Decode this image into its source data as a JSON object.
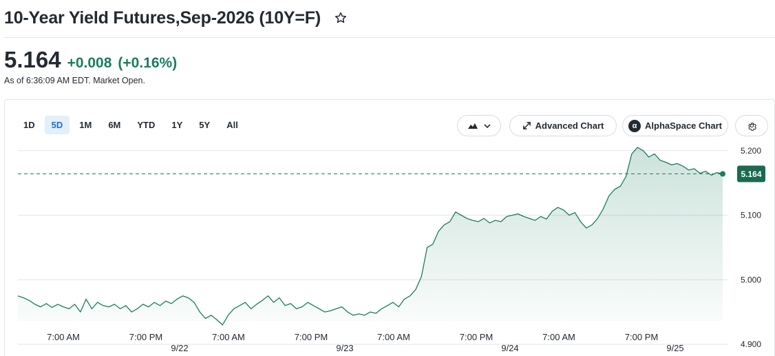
{
  "header": {
    "title": "10-Year Yield Futures,Sep-2026 (10Y=F)",
    "star_icon": "star-outline-icon"
  },
  "quote": {
    "price": "5.164",
    "change": "+0.008",
    "change_pct": "(+0.16%)",
    "as_of": "As of 6:36:09 AM EDT. Market Open.",
    "up_color": "#1a7d5f"
  },
  "ranges": [
    {
      "label": "1D",
      "active": false
    },
    {
      "label": "5D",
      "active": true
    },
    {
      "label": "1M",
      "active": false
    },
    {
      "label": "6M",
      "active": false
    },
    {
      "label": "YTD",
      "active": false
    },
    {
      "label": "1Y",
      "active": false
    },
    {
      "label": "5Y",
      "active": false
    },
    {
      "label": "All",
      "active": false
    }
  ],
  "toolbar": {
    "chart_type_icon": "mountain-chart-icon",
    "advanced_label": "Advanced Chart",
    "advanced_icon": "expand-arrows-icon",
    "alpha_label": "AlphaSpace Chart",
    "alpha_icon": "alpha-logo-icon",
    "alpha_glyph": "α",
    "settings_icon": "gear-icon"
  },
  "chart_data": {
    "type": "area",
    "title": "",
    "xlabel": "",
    "ylabel": "",
    "ylim": [
      4.9,
      5.22
    ],
    "y_ticks": [
      5.2,
      5.1,
      5.0,
      4.9
    ],
    "y_tick_labels": [
      "5.200",
      "5.100",
      "5.000",
      "4.900"
    ],
    "grid": true,
    "last_value": 5.164,
    "last_value_label": "5.164",
    "x_time_labels": [
      "7:00 AM",
      "7:00 PM",
      "7:00 AM",
      "7:00 PM",
      "7:00 AM",
      "7:00 PM",
      "7:00 AM",
      "7:00 PM"
    ],
    "x_date_labels": [
      "9/22",
      "9/23",
      "9/24",
      "9/25"
    ],
    "series": [
      {
        "values": [
          4.975,
          4.972,
          4.968,
          4.962,
          4.958,
          4.963,
          4.957,
          4.962,
          4.958,
          4.955,
          4.962,
          4.95,
          4.97,
          4.955,
          4.965,
          4.96,
          4.958,
          4.962,
          4.955,
          4.96,
          4.95,
          4.955,
          4.962,
          4.958,
          4.965,
          4.96,
          4.967,
          4.963,
          4.97,
          4.975,
          4.972,
          4.965,
          4.95,
          4.94,
          4.945,
          4.938,
          4.93,
          4.945,
          4.955,
          4.96,
          4.965,
          4.955,
          4.962,
          4.968,
          4.975,
          4.965,
          4.972,
          4.96,
          4.963,
          4.955,
          4.958,
          4.965,
          4.96,
          4.955,
          4.95,
          4.952,
          4.955,
          4.958,
          4.95,
          4.945,
          4.947,
          4.945,
          4.95,
          4.948,
          4.955,
          4.96,
          4.965,
          4.958,
          4.97,
          4.975,
          4.985,
          5.005,
          5.05,
          5.055,
          5.075,
          5.085,
          5.09,
          5.105,
          5.1,
          5.095,
          5.092,
          5.09,
          5.095,
          5.088,
          5.092,
          5.09,
          5.098,
          5.1,
          5.102,
          5.098,
          5.095,
          5.092,
          5.098,
          5.094,
          5.106,
          5.112,
          5.108,
          5.1,
          5.104,
          5.09,
          5.08,
          5.085,
          5.095,
          5.11,
          5.13,
          5.14,
          5.145,
          5.16,
          5.195,
          5.205,
          5.2,
          5.19,
          5.195,
          5.185,
          5.182,
          5.178,
          5.18,
          5.176,
          5.17,
          5.172,
          5.165,
          5.168,
          5.162,
          5.166,
          5.164
        ]
      }
    ]
  }
}
